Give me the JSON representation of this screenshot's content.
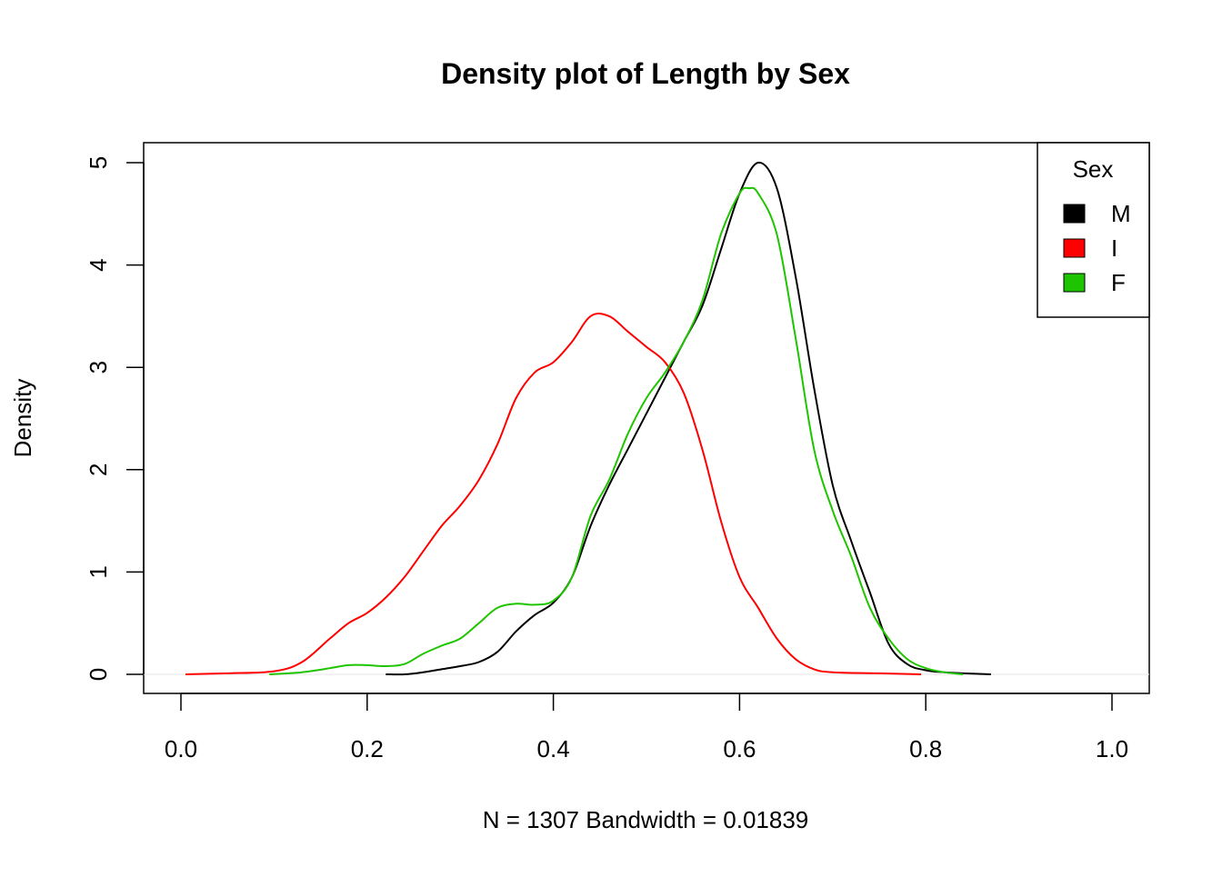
{
  "chart_data": {
    "type": "line",
    "title": "Density plot of Length by Sex",
    "xlabel": "N = 1307   Bandwidth = 0.01839",
    "ylabel": "Density",
    "xlim": [
      0.0,
      1.0
    ],
    "ylim": [
      0,
      5
    ],
    "x_ticks": [
      "0.0",
      "0.2",
      "0.4",
      "0.6",
      "0.8",
      "1.0"
    ],
    "y_ticks": [
      "0",
      "1",
      "2",
      "3",
      "4",
      "5"
    ],
    "grid": false,
    "legend": {
      "title": "Sex",
      "position": "top-right",
      "entries": [
        {
          "label": "M",
          "color": "#000000"
        },
        {
          "label": "I",
          "color": "#FF0000"
        },
        {
          "label": "F",
          "color": "#1FC400"
        }
      ]
    },
    "series": [
      {
        "name": "M",
        "color": "#000000",
        "points": [
          [
            0.22,
            0.0
          ],
          [
            0.24,
            0.0
          ],
          [
            0.26,
            0.02
          ],
          [
            0.28,
            0.05
          ],
          [
            0.3,
            0.08
          ],
          [
            0.32,
            0.12
          ],
          [
            0.34,
            0.22
          ],
          [
            0.36,
            0.42
          ],
          [
            0.38,
            0.58
          ],
          [
            0.4,
            0.7
          ],
          [
            0.42,
            0.95
          ],
          [
            0.44,
            1.45
          ],
          [
            0.46,
            1.85
          ],
          [
            0.48,
            2.2
          ],
          [
            0.5,
            2.55
          ],
          [
            0.52,
            2.9
          ],
          [
            0.54,
            3.25
          ],
          [
            0.56,
            3.6
          ],
          [
            0.58,
            4.15
          ],
          [
            0.6,
            4.7
          ],
          [
            0.62,
            5.0
          ],
          [
            0.64,
            4.75
          ],
          [
            0.66,
            3.9
          ],
          [
            0.68,
            2.8
          ],
          [
            0.7,
            1.85
          ],
          [
            0.72,
            1.3
          ],
          [
            0.74,
            0.8
          ],
          [
            0.76,
            0.3
          ],
          [
            0.78,
            0.1
          ],
          [
            0.8,
            0.04
          ],
          [
            0.82,
            0.02
          ],
          [
            0.84,
            0.01
          ],
          [
            0.87,
            0.0
          ]
        ]
      },
      {
        "name": "I",
        "color": "#FF0000",
        "points": [
          [
            0.005,
            0.0
          ],
          [
            0.05,
            0.01
          ],
          [
            0.1,
            0.03
          ],
          [
            0.13,
            0.12
          ],
          [
            0.16,
            0.35
          ],
          [
            0.18,
            0.5
          ],
          [
            0.2,
            0.6
          ],
          [
            0.22,
            0.75
          ],
          [
            0.24,
            0.95
          ],
          [
            0.26,
            1.2
          ],
          [
            0.28,
            1.45
          ],
          [
            0.3,
            1.65
          ],
          [
            0.32,
            1.9
          ],
          [
            0.34,
            2.25
          ],
          [
            0.36,
            2.7
          ],
          [
            0.38,
            2.95
          ],
          [
            0.4,
            3.05
          ],
          [
            0.42,
            3.25
          ],
          [
            0.44,
            3.5
          ],
          [
            0.46,
            3.5
          ],
          [
            0.48,
            3.35
          ],
          [
            0.5,
            3.2
          ],
          [
            0.52,
            3.05
          ],
          [
            0.54,
            2.75
          ],
          [
            0.56,
            2.2
          ],
          [
            0.58,
            1.5
          ],
          [
            0.6,
            0.95
          ],
          [
            0.62,
            0.65
          ],
          [
            0.64,
            0.35
          ],
          [
            0.66,
            0.15
          ],
          [
            0.68,
            0.05
          ],
          [
            0.7,
            0.02
          ],
          [
            0.75,
            0.01
          ],
          [
            0.795,
            0.0
          ]
        ]
      },
      {
        "name": "F",
        "color": "#1FC400",
        "points": [
          [
            0.095,
            0.0
          ],
          [
            0.13,
            0.02
          ],
          [
            0.16,
            0.06
          ],
          [
            0.18,
            0.09
          ],
          [
            0.2,
            0.09
          ],
          [
            0.22,
            0.08
          ],
          [
            0.24,
            0.1
          ],
          [
            0.26,
            0.2
          ],
          [
            0.28,
            0.28
          ],
          [
            0.3,
            0.35
          ],
          [
            0.32,
            0.5
          ],
          [
            0.34,
            0.65
          ],
          [
            0.36,
            0.69
          ],
          [
            0.38,
            0.68
          ],
          [
            0.4,
            0.72
          ],
          [
            0.42,
            0.95
          ],
          [
            0.44,
            1.55
          ],
          [
            0.46,
            1.9
          ],
          [
            0.48,
            2.35
          ],
          [
            0.5,
            2.7
          ],
          [
            0.52,
            2.95
          ],
          [
            0.54,
            3.25
          ],
          [
            0.56,
            3.65
          ],
          [
            0.58,
            4.3
          ],
          [
            0.6,
            4.7
          ],
          [
            0.61,
            4.75
          ],
          [
            0.62,
            4.7
          ],
          [
            0.64,
            4.3
          ],
          [
            0.66,
            3.3
          ],
          [
            0.68,
            2.2
          ],
          [
            0.7,
            1.6
          ],
          [
            0.72,
            1.15
          ],
          [
            0.74,
            0.65
          ],
          [
            0.76,
            0.35
          ],
          [
            0.78,
            0.15
          ],
          [
            0.8,
            0.06
          ],
          [
            0.82,
            0.02
          ],
          [
            0.84,
            0.0
          ]
        ]
      }
    ]
  }
}
